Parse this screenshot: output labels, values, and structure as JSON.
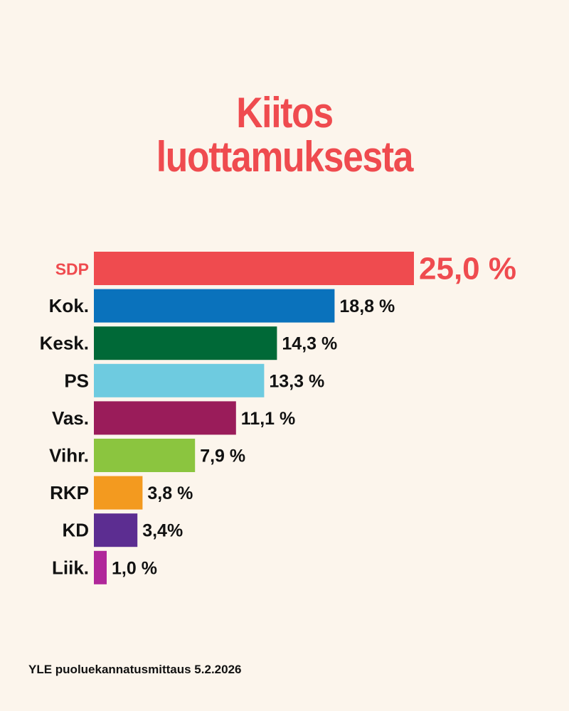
{
  "title_lines": [
    "Kiitos",
    "luottamuksesta"
  ],
  "footer": "YLE puoluekannatusmittaus 5.2.2026",
  "colors": {
    "background": "#fcf5ec",
    "accent": "#ef4b4f"
  },
  "chart_data": {
    "type": "bar",
    "orientation": "horizontal",
    "title": "Kiitos luottamuksesta",
    "categories": [
      "SDP",
      "Kok.",
      "Kesk.",
      "PS",
      "Vas.",
      "Vihr.",
      "RKP",
      "KD",
      "Liik."
    ],
    "values": [
      25.0,
      18.8,
      14.3,
      13.3,
      11.1,
      7.9,
      3.8,
      3.4,
      1.0
    ],
    "value_labels": [
      "25,0 %",
      "18,8 %",
      "14,3 %",
      "13,3 %",
      "11,1 %",
      "7,9 %",
      "3,8 %",
      "3,4%",
      "1,0 %"
    ],
    "colors": [
      "#ef4b4f",
      "#0a72bc",
      "#006937",
      "#6ecbe0",
      "#9a1c5a",
      "#8bc53f",
      "#f39a1f",
      "#5c2d91",
      "#b0279a"
    ],
    "highlight": "SDP",
    "grid": false,
    "legend": "none"
  }
}
